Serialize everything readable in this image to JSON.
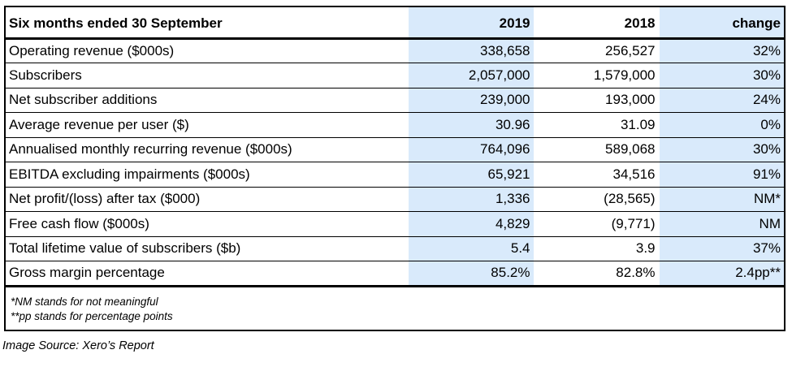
{
  "table": {
    "columns": [
      "Six months ended 30 September",
      "2019",
      "2018",
      "change"
    ],
    "rows": [
      {
        "label": "Operating revenue ($000s)",
        "v2019": "338,658",
        "v2018": "256,527",
        "change": "32%"
      },
      {
        "label": "Subscribers",
        "v2019": "2,057,000",
        "v2018": "1,579,000",
        "change": "30%"
      },
      {
        "label": "Net subscriber additions",
        "v2019": "239,000",
        "v2018": "193,000",
        "change": "24%"
      },
      {
        "label": "Average revenue per user ($)",
        "v2019": "30.96",
        "v2018": "31.09",
        "change": "0%"
      },
      {
        "label": "Annualised monthly recurring revenue ($000s)",
        "v2019": "764,096",
        "v2018": "589,068",
        "change": "30%"
      },
      {
        "label": "EBITDA excluding impairments ($000s)",
        "v2019": "65,921",
        "v2018": "34,516",
        "change": "91%"
      },
      {
        "label": "Net profit/(loss) after tax ($000)",
        "v2019": "1,336",
        "v2018": "(28,565)",
        "change": "NM*"
      },
      {
        "label": "Free cash flow ($000s)",
        "v2019": "4,829",
        "v2018": "(9,771)",
        "change": "NM"
      },
      {
        "label": "Total lifetime value of subscribers ($b)",
        "v2019": "5.4",
        "v2018": "3.9",
        "change": "37%"
      },
      {
        "label": "Gross margin percentage",
        "v2019": "85.2%",
        "v2018": "82.8%",
        "change": "2.4pp**"
      }
    ]
  },
  "notes": [
    "*NM stands for not meaningful",
    "**pp stands for percentage points"
  ],
  "caption": "Image Source: Xero’s Report",
  "colors": {
    "shade": "#d9eafb",
    "border": "#000000"
  }
}
